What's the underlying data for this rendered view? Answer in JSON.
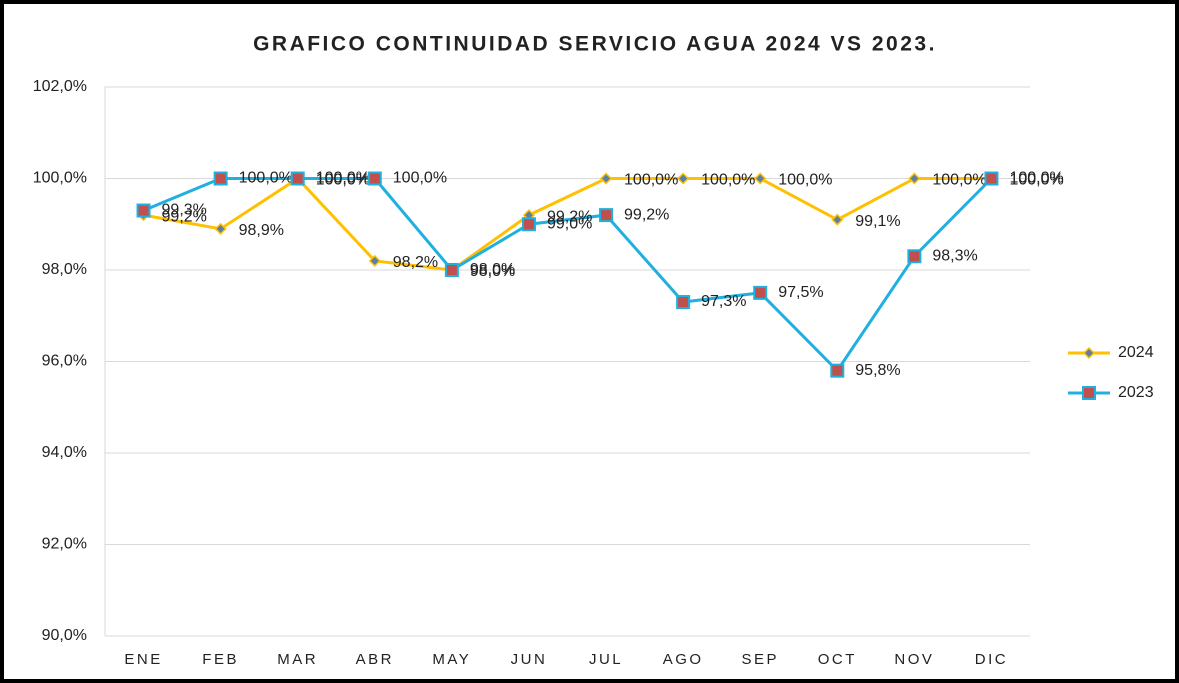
{
  "chart_data": {
    "type": "line",
    "title": "GRAFICO CONTINUIDAD SERVICIO AGUA 2024 VS 2023.",
    "categories": [
      "ENE",
      "FEB",
      "MAR",
      "ABR",
      "MAY",
      "JUN",
      "JUL",
      "AGO",
      "SEP",
      "OCT",
      "NOV",
      "DIC"
    ],
    "series": [
      {
        "name": "2024",
        "color": "#ffc000",
        "values": [
          99.2,
          98.9,
          100.0,
          98.2,
          98.0,
          99.2,
          100.0,
          100.0,
          100.0,
          99.1,
          100.0,
          100.0
        ],
        "value_labels": [
          "99,2%",
          "98,9%",
          "100,0%",
          "98,2%",
          "98,0%",
          "99,2%",
          "100,0%",
          "100,0%",
          "100,0%",
          "99,1%",
          "100,0%",
          "100,0%"
        ]
      },
      {
        "name": "2023",
        "color": "#1fb0e0",
        "values": [
          99.3,
          100.0,
          100.0,
          100.0,
          98.0,
          99.0,
          99.2,
          97.3,
          97.5,
          95.8,
          98.3,
          100.0
        ],
        "value_labels": [
          "99,3%",
          "100,0%",
          "100,0%",
          "100,0%",
          "98,0%",
          "99,0%",
          "99,2%",
          "97,3%",
          "97,5%",
          "95,8%",
          "98,3%",
          "100,0%"
        ]
      }
    ],
    "ylim": [
      90,
      102
    ],
    "yticks": [
      {
        "value": 90,
        "label": "90,0%"
      },
      {
        "value": 92,
        "label": "92,0%"
      },
      {
        "value": 94,
        "label": "94,0%"
      },
      {
        "value": 96,
        "label": "96,0%"
      },
      {
        "value": 98,
        "label": "98,0%"
      },
      {
        "value": 100,
        "label": "100,0%"
      },
      {
        "value": 102,
        "label": "102,0%"
      }
    ],
    "grid": true,
    "legend": "right"
  }
}
